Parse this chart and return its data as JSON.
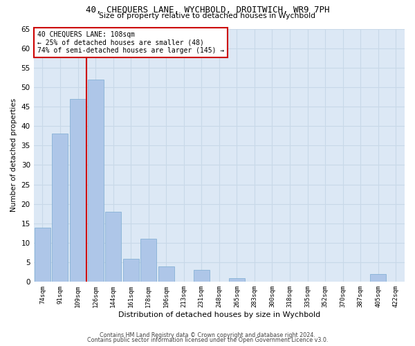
{
  "title1": "40, CHEQUERS LANE, WYCHBOLD, DROITWICH, WR9 7PH",
  "title2": "Size of property relative to detached houses in Wychbold",
  "xlabel": "Distribution of detached houses by size in Wychbold",
  "ylabel": "Number of detached properties",
  "categories": [
    "74sqm",
    "91sqm",
    "109sqm",
    "126sqm",
    "144sqm",
    "161sqm",
    "178sqm",
    "196sqm",
    "213sqm",
    "231sqm",
    "248sqm",
    "265sqm",
    "283sqm",
    "300sqm",
    "318sqm",
    "335sqm",
    "352sqm",
    "370sqm",
    "387sqm",
    "405sqm",
    "422sqm"
  ],
  "values": [
    14,
    38,
    47,
    52,
    18,
    6,
    11,
    4,
    0,
    3,
    0,
    1,
    0,
    0,
    0,
    0,
    0,
    0,
    0,
    2,
    0
  ],
  "bar_color": "#aec6e8",
  "bar_edge_color": "#7aaad0",
  "annotation_text_line1": "40 CHEQUERS LANE: 108sqm",
  "annotation_text_line2": "← 25% of detached houses are smaller (48)",
  "annotation_text_line3": "74% of semi-detached houses are larger (145) →",
  "annotation_box_color": "#ffffff",
  "annotation_box_edge": "#cc0000",
  "vline_color": "#cc0000",
  "vline_x": 2.5,
  "ylim": [
    0,
    65
  ],
  "yticks": [
    0,
    5,
    10,
    15,
    20,
    25,
    30,
    35,
    40,
    45,
    50,
    55,
    60,
    65
  ],
  "grid_color": "#c8d8e8",
  "background_color": "#dce8f5",
  "footer1": "Contains HM Land Registry data © Crown copyright and database right 2024.",
  "footer2": "Contains public sector information licensed under the Open Government Licence v3.0."
}
